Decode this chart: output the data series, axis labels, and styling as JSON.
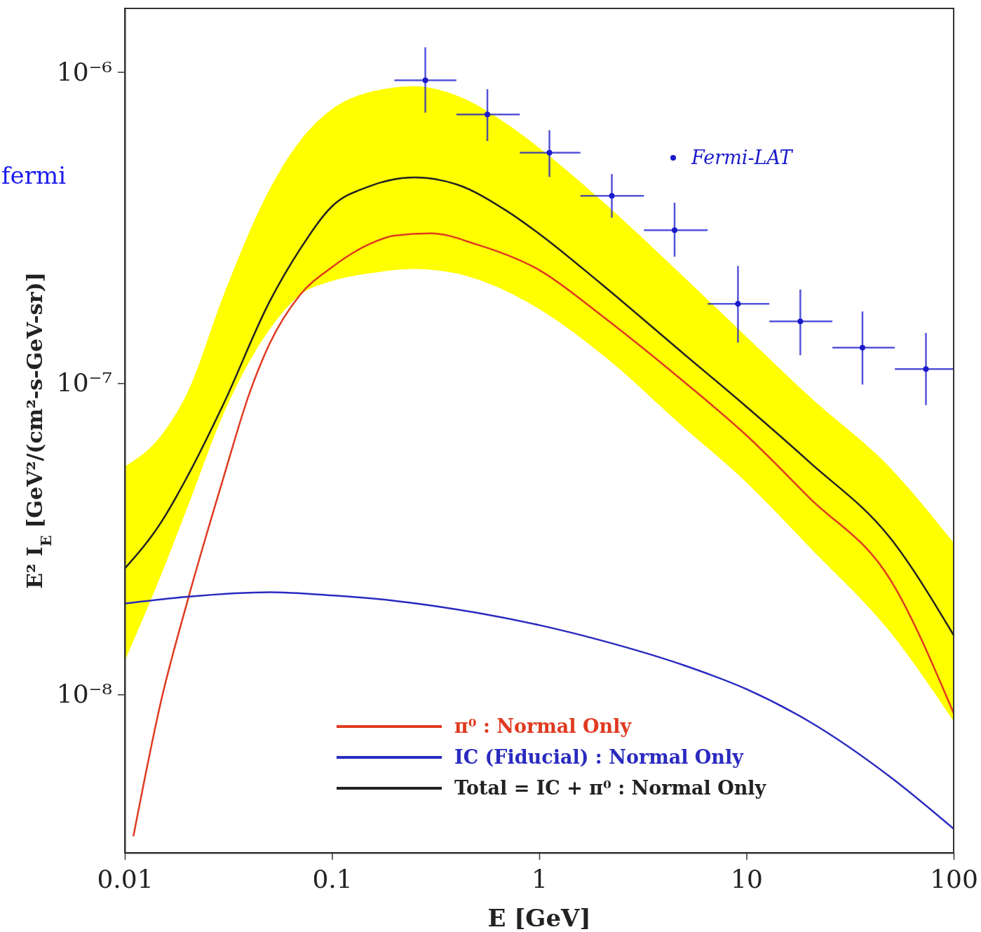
{
  "chart_data": {
    "type": "line",
    "xlabel": "E [GeV]",
    "ylabel": "E² I$_{E}$ [GeV²/(cm²-s-GeV-sr)]",
    "annotations": [
      "fermi"
    ],
    "log": "xy",
    "xlim": [
      0.01,
      100
    ],
    "ylim": [
      3.1e-09,
      1.6e-06
    ],
    "xticks": [
      {
        "value": 0.01,
        "label": "0.01"
      },
      {
        "value": 0.1,
        "label": "0.1"
      },
      1,
      10,
      100
    ],
    "yticks": [
      {
        "value": 1e-08,
        "label": "10⁻⁸"
      },
      {
        "value": 1e-07,
        "label": "10⁻⁷"
      },
      {
        "value": 1e-06,
        "label": "10⁻⁶"
      }
    ],
    "grid": false,
    "legend": "top right",
    "series": [
      {
        "name": "π⁰ : Normal Only",
        "color": "#e03a20",
        "x": [
          0.011,
          0.015,
          0.02,
          0.03,
          0.04,
          0.05,
          0.07,
          0.1,
          0.15,
          0.2,
          0.3,
          0.5,
          1,
          2,
          5,
          10,
          20,
          50,
          100
        ],
        "values": [
          3.5e-09,
          9.6e-09,
          1.98e-08,
          5e-08,
          9.3e-08,
          1.34e-07,
          1.92e-07,
          2.36e-07,
          2.79e-07,
          2.98e-07,
          3.03e-07,
          2.79e-07,
          2.31e-07,
          1.65e-07,
          1.01e-07,
          6.8e-08,
          4.3e-08,
          2.31e-08,
          8.7e-09
        ]
      },
      {
        "name": "IC (Fiducial) : Normal Only",
        "color": "#2a2ac0",
        "x": [
          0.01,
          0.02,
          0.05,
          0.1,
          0.2,
          0.5,
          1,
          2,
          5,
          10,
          20,
          50,
          100
        ],
        "values": [
          1.96e-08,
          2.06e-08,
          2.13e-08,
          2.08e-08,
          2e-08,
          1.83e-08,
          1.67e-08,
          1.49e-08,
          1.24e-08,
          1.04e-08,
          8.2e-09,
          5.4e-09,
          3.7e-09
        ]
      },
      {
        "name": "Total = IC + π⁰ : Normal Only",
        "color": "#222222",
        "x": [
          0.01,
          0.015,
          0.02,
          0.03,
          0.05,
          0.07,
          0.1,
          0.15,
          0.25,
          0.4,
          0.7,
          1,
          2,
          5,
          10,
          20,
          50,
          100
        ],
        "values": [
          2.54e-08,
          3.58e-08,
          5e-08,
          8.6e-08,
          1.83e-07,
          2.69e-07,
          3.7e-07,
          4.28e-07,
          4.58e-07,
          4.35e-07,
          3.57e-07,
          3.02e-07,
          2.08e-07,
          1.24e-07,
          8.4e-08,
          5.6e-08,
          3.15e-08,
          1.55e-08
        ],
        "upper": [
          5.4e-08,
          6.8e-08,
          9.3e-08,
          1.92e-07,
          4.2e-07,
          6e-07,
          7.6e-07,
          8.6e-07,
          9e-07,
          8.4e-07,
          6.8e-07,
          5.7e-07,
          3.86e-07,
          2.19e-07,
          1.41e-07,
          9.1e-08,
          5.3e-08,
          3.07e-08
        ],
        "lower": [
          1.28e-08,
          2.43e-08,
          3.97e-08,
          8e-08,
          1.49e-07,
          1.92e-07,
          2.13e-07,
          2.25e-07,
          2.33e-07,
          2.25e-07,
          1.97e-07,
          1.73e-07,
          1.24e-07,
          7.2e-08,
          4.8e-08,
          2.99e-08,
          1.57e-08,
          8.2e-09
        ]
      },
      {
        "type": "scatter",
        "name": "Fermi-LAT",
        "color": "#1a1acc",
        "marker": "circle",
        "x": [
          0.282,
          0.562,
          1.12,
          2.24,
          4.5,
          9.1,
          18.2,
          36.3,
          73.5
        ],
        "values": [
          9.4e-07,
          7.3e-07,
          5.5e-07,
          4e-07,
          3.1e-07,
          1.8e-07,
          1.58e-07,
          1.3e-07,
          1.11e-07
        ],
        "errors": [
          [
            7.4e-07,
            1.2e-06
          ],
          [
            6e-07,
            8.8e-07
          ],
          [
            4.6e-07,
            6.5e-07
          ],
          [
            3.4e-07,
            4.7e-07
          ],
          [
            2.55e-07,
            3.8e-07
          ],
          [
            1.35e-07,
            2.38e-07
          ],
          [
            1.23e-07,
            2e-07
          ],
          [
            9.9e-08,
            1.7e-07
          ],
          [
            8.5e-08,
            1.45e-07
          ]
        ],
        "xerrors": [
          [
            0.2,
            0.398
          ],
          [
            0.398,
            0.806
          ],
          [
            0.806,
            1.58
          ],
          [
            1.58,
            3.2
          ],
          [
            3.2,
            6.5
          ],
          [
            6.5,
            12.9
          ],
          [
            12.9,
            26
          ],
          [
            26,
            52
          ],
          [
            52,
            100
          ]
        ]
      }
    ]
  }
}
